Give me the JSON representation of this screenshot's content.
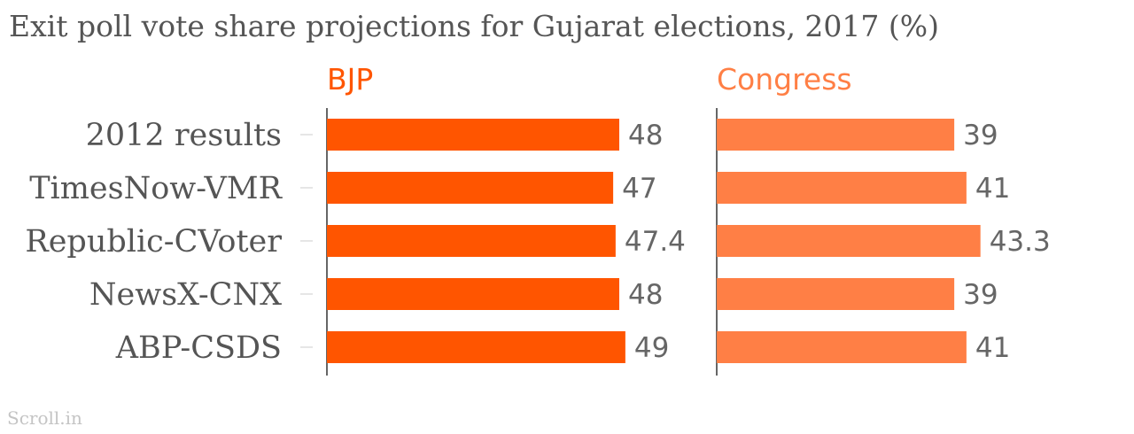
{
  "source": "Scroll.in",
  "chart_data": {
    "type": "bar",
    "orientation": "horizontal",
    "layout": "small-multiples",
    "title": "Exit poll vote share projections for Gujarat elections, 2017 (%)",
    "categories": [
      "2012 results",
      "TimesNow-VMR",
      "Republic-CVoter",
      "NewsX-CNX",
      "ABP-CSDS"
    ],
    "series": [
      {
        "name": "BJP",
        "color": "#ff5500",
        "values": [
          48,
          47,
          47.4,
          48,
          49
        ]
      },
      {
        "name": "Congress",
        "color": "#ff7f45",
        "values": [
          39,
          41,
          43.3,
          39,
          41
        ]
      }
    ],
    "xlim": [
      0,
      60
    ],
    "grid": false
  }
}
